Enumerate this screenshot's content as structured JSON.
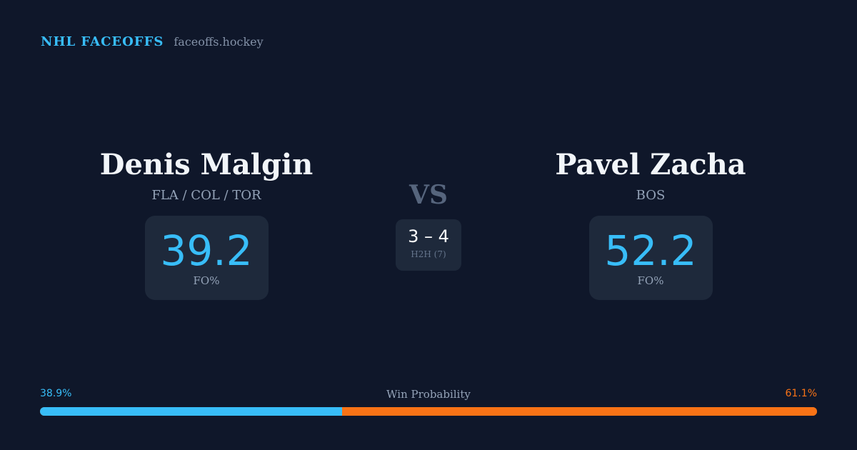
{
  "brand": {
    "name": "NHL FACEOFFS",
    "domain": "faceoffs.hockey"
  },
  "player1": {
    "name": "Denis Malgin",
    "teams": "FLA / COL / TOR",
    "fo_pct": "39.2",
    "fo_label": "FO%"
  },
  "player2": {
    "name": "Pavel Zacha",
    "teams": "BOS",
    "fo_pct": "52.2",
    "fo_label": "FO%"
  },
  "vs": "VS",
  "h2h": {
    "score": "3 – 4",
    "label": "H2H (7)"
  },
  "win_probability": {
    "title": "Win Probability",
    "left_label": "38.9%",
    "right_label": "61.1%",
    "left_value": 38.9,
    "right_value": 61.1
  },
  "colors": {
    "accent_blue": "#38bdf8",
    "accent_orange": "#f97316",
    "background": "#0f172a",
    "card": "#1e293b"
  }
}
